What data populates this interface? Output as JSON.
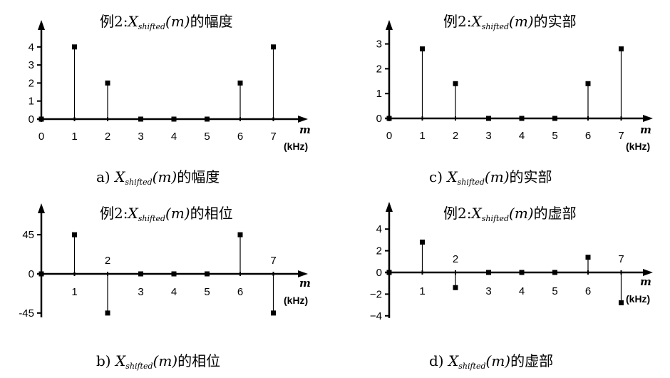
{
  "panels": [
    {
      "id": "a",
      "title": {
        "prefix": "例2:",
        "var": "X",
        "sub": "shifted",
        "arg": "(m)",
        "suffix": "的幅度"
      },
      "caption": {
        "label": "a)",
        "var": "X",
        "sub": "shifted",
        "arg": "(m)",
        "suffix": "的幅度"
      }
    },
    {
      "id": "c",
      "title": {
        "prefix": "例2:",
        "var": "X",
        "sub": "shifted",
        "arg": "(m)",
        "suffix": "的实部"
      },
      "caption": {
        "label": "c)",
        "var": "X",
        "sub": "shifted",
        "arg": "(m)",
        "suffix": "的实部"
      }
    },
    {
      "id": "b",
      "title": {
        "prefix": "例2:",
        "var": "X",
        "sub": "shifted",
        "arg": "(m)",
        "suffix": "的相位"
      },
      "caption": {
        "label": "b)",
        "var": "X",
        "sub": "shifted",
        "arg": "(m)",
        "suffix": "的相位"
      }
    },
    {
      "id": "d",
      "title": {
        "prefix": "例2:",
        "var": "X",
        "sub": "shifted",
        "arg": "(m)",
        "suffix": "的虚部"
      },
      "caption": {
        "label": "d)",
        "var": "X",
        "sub": "shifted",
        "arg": "(m)",
        "suffix": "的虚部"
      }
    }
  ],
  "chart_data": [
    {
      "type": "stem",
      "title": "例2:Xshifted(m)的幅度",
      "xlabel": "m",
      "xunit": "(kHz)",
      "x": [
        0,
        1,
        2,
        3,
        4,
        5,
        6,
        7
      ],
      "y": [
        0,
        4,
        2,
        0,
        0,
        0,
        2,
        4
      ],
      "xticks": [
        "0",
        "1",
        "2",
        "3",
        "4",
        "5",
        "6",
        "7"
      ],
      "yticks": [
        "0",
        "1",
        "2",
        "3",
        "4"
      ],
      "ylim": [
        0,
        4.6
      ]
    },
    {
      "type": "stem",
      "title": "例2:Xshifted(m)的相位",
      "xlabel": "m",
      "xunit": "(kHz)",
      "x": [
        0,
        1,
        2,
        3,
        4,
        5,
        6,
        7
      ],
      "y": [
        0,
        45,
        -45,
        0,
        0,
        0,
        45,
        -45
      ],
      "xticks": [
        "1",
        "2",
        "3",
        "4",
        "5",
        "6",
        "7"
      ],
      "yticks": [
        "45",
        "0",
        "-45"
      ],
      "ylim": [
        -50,
        75
      ]
    },
    {
      "type": "stem",
      "title": "例2:Xshifted(m)的实部",
      "xlabel": "m",
      "xunit": "(kHz)",
      "x": [
        0,
        1,
        2,
        3,
        4,
        5,
        6,
        7
      ],
      "y": [
        0,
        2.8,
        1.4,
        0,
        0,
        0,
        1.4,
        2.8
      ],
      "xticks": [
        "0",
        "1",
        "2",
        "3",
        "4",
        "5",
        "6",
        "7"
      ],
      "yticks": [
        "0",
        "1",
        "2",
        "3"
      ],
      "ylim": [
        0,
        3.6
      ]
    },
    {
      "type": "stem",
      "title": "例2:Xshifted(m)的虚部",
      "xlabel": "m",
      "xunit": "(kHz)",
      "x": [
        0,
        1,
        2,
        3,
        4,
        5,
        6,
        7
      ],
      "y": [
        0,
        2.8,
        -1.4,
        0,
        0,
        0,
        1.4,
        -2.8
      ],
      "xticks": [
        "1",
        "2",
        "3",
        "4",
        "5",
        "6",
        "7"
      ],
      "yticks": [
        "4",
        "2",
        "0",
        "−2",
        "−4"
      ],
      "ylim": [
        -4.2,
        5.2
      ]
    }
  ]
}
